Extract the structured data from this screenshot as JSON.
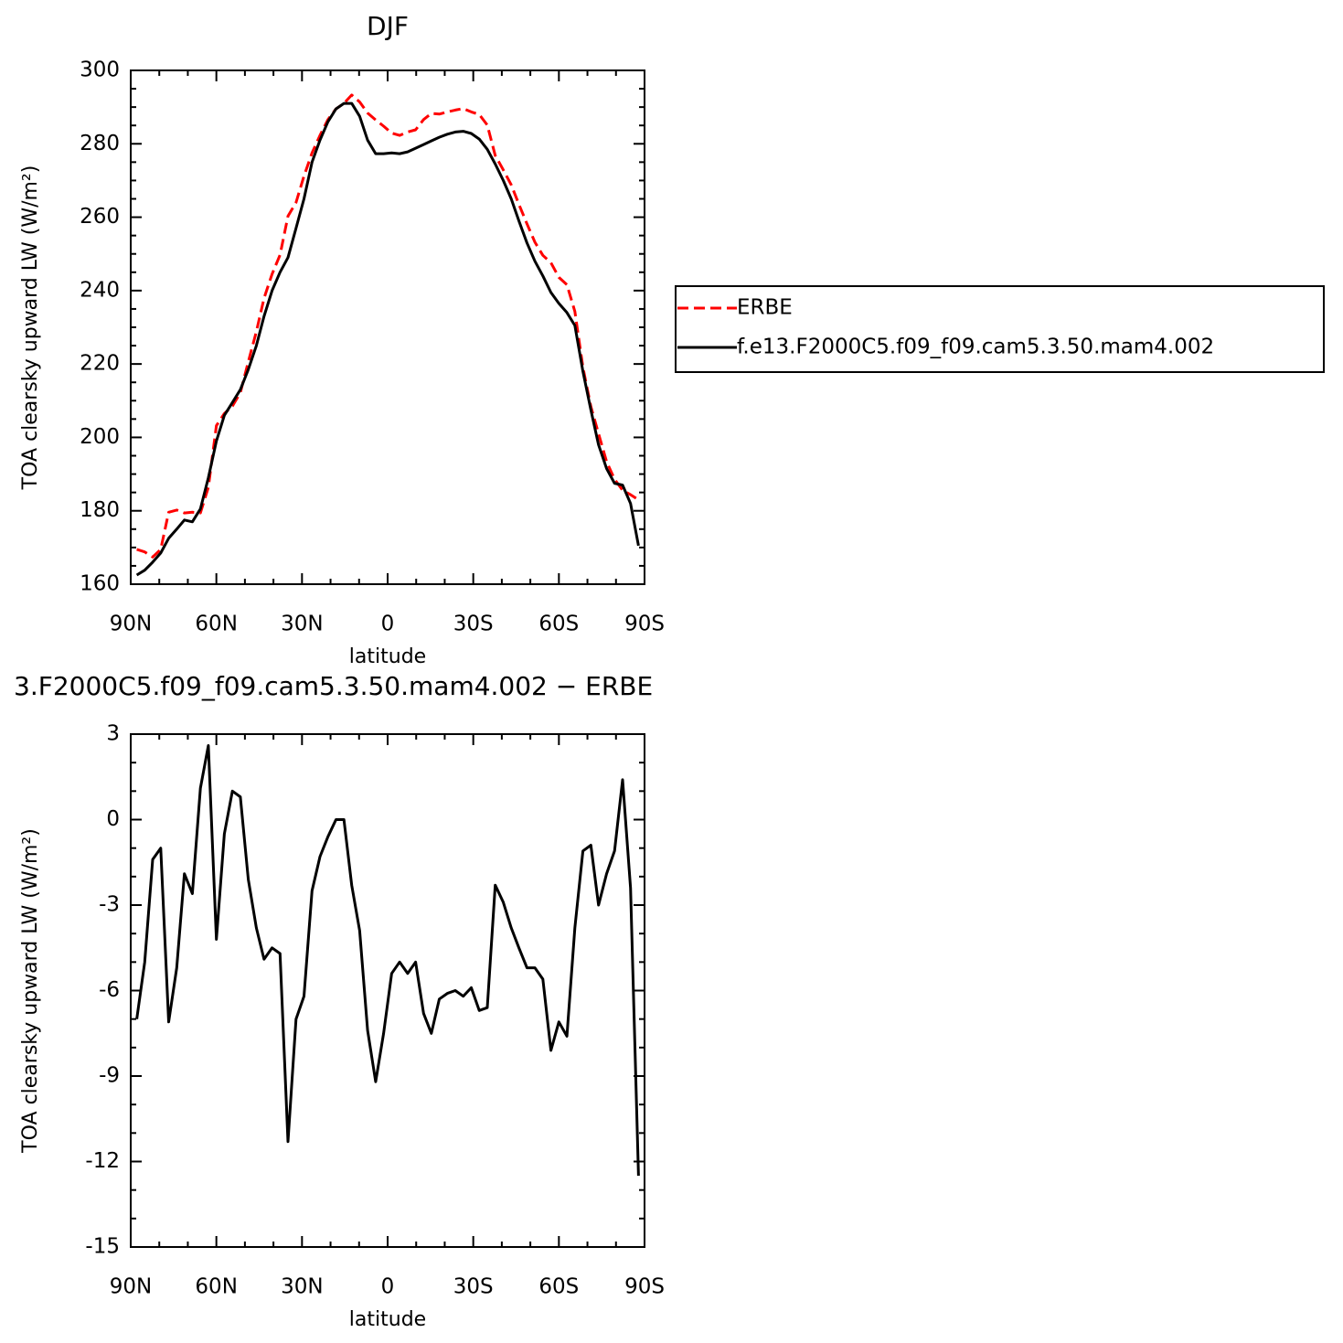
{
  "chart_data": [
    {
      "type": "line",
      "title": "DJF",
      "x_label": "latitude",
      "y_label": "TOA clearsky upward LW (W/m²)",
      "x": [
        87.9,
        85.1,
        82.3,
        79.5,
        76.7,
        73.9,
        71.2,
        68.4,
        65.6,
        62.8,
        60.0,
        57.2,
        54.4,
        51.6,
        48.8,
        46.0,
        43.3,
        40.5,
        37.7,
        34.9,
        32.1,
        29.3,
        26.5,
        23.7,
        20.9,
        18.1,
        15.3,
        12.6,
        9.8,
        7.0,
        4.2,
        1.4,
        -1.4,
        -4.2,
        -7.0,
        -9.8,
        -12.6,
        -15.3,
        -18.1,
        -20.9,
        -23.7,
        -26.5,
        -29.3,
        -32.1,
        -34.9,
        -37.7,
        -40.5,
        -43.3,
        -46.0,
        -48.8,
        -51.6,
        -54.4,
        -57.2,
        -60.0,
        -62.8,
        -65.6,
        -68.4,
        -71.2,
        -73.9,
        -76.7,
        -79.5,
        -82.3,
        -85.1,
        -87.9
      ],
      "series": [
        {
          "name": "ERBE",
          "color": "#ff0000",
          "style": "dashed",
          "values": [
            169.5,
            168.8,
            167.4,
            169.5,
            179.6,
            180.2,
            179.4,
            179.6,
            179.4,
            186.4,
            203.2,
            206.5,
            208.5,
            212.2,
            220.6,
            228.8,
            237.9,
            244.5,
            249.7,
            260.3,
            264,
            271.2,
            277.5,
            282.3,
            286.6,
            289.5,
            291,
            293.3,
            291.4,
            288.4,
            286.5,
            284.8,
            282.9,
            282.3,
            283.2,
            283.8,
            286.6,
            288.3,
            288.1,
            288.7,
            289.2,
            289.6,
            288.7,
            288,
            285.1,
            276.8,
            272.9,
            268.8,
            263.5,
            258.2,
            253.2,
            249.6,
            247.6,
            243.6,
            241.6,
            234.3,
            219.1,
            208.4,
            201,
            193.4,
            188.6,
            185.6,
            184.4,
            183
          ]
        },
        {
          "name": "f.e13.F2000C5.f09_f09.cam5.3.50.mam4.002",
          "color": "#000000",
          "style": "solid",
          "values": [
            162.5,
            163.8,
            166,
            168.5,
            172.5,
            175,
            177.5,
            177,
            180.5,
            189,
            199,
            206,
            209.5,
            213,
            218.5,
            225,
            233,
            240,
            245,
            249,
            257,
            265,
            275,
            281,
            286,
            289.5,
            291,
            291,
            287.5,
            281,
            277.3,
            277.3,
            277.5,
            277.3,
            277.8,
            278.8,
            279.8,
            280.8,
            281.8,
            282.6,
            283.2,
            283.4,
            282.8,
            281.3,
            278.5,
            274.5,
            270,
            265,
            259,
            253,
            248,
            244,
            239.5,
            236.5,
            234,
            230.5,
            218,
            207.5,
            198,
            191.5,
            187.5,
            187,
            182,
            170.5
          ]
        }
      ],
      "xlim": [
        90,
        -90
      ],
      "xticks": [
        {
          "value": 90,
          "label": "90N"
        },
        {
          "value": 60,
          "label": "60N"
        },
        {
          "value": 30,
          "label": "30N"
        },
        0,
        {
          "value": -30,
          "label": "30S"
        },
        {
          "value": -60,
          "label": "60S"
        },
        {
          "value": -90,
          "label": "90S"
        }
      ],
      "ylim": [
        160,
        300
      ],
      "yticks": [
        160,
        180,
        200,
        220,
        240,
        260,
        280,
        300
      ],
      "legend": "right"
    },
    {
      "type": "line",
      "title": "3.F2000C5.f09_f09.cam5.3.50.mam4.002 − ERBE",
      "x_label": "latitude",
      "y_label": "TOA clearsky upward LW (W/m²)",
      "x": [
        87.9,
        85.1,
        82.3,
        79.5,
        76.7,
        73.9,
        71.2,
        68.4,
        65.6,
        62.8,
        60.0,
        57.2,
        54.4,
        51.6,
        48.8,
        46.0,
        43.3,
        40.5,
        37.7,
        34.9,
        32.1,
        29.3,
        26.5,
        23.7,
        20.9,
        18.1,
        15.3,
        12.6,
        9.8,
        7.0,
        4.2,
        1.4,
        -1.4,
        -4.2,
        -7.0,
        -9.8,
        -12.6,
        -15.3,
        -18.1,
        -20.9,
        -23.7,
        -26.5,
        -29.3,
        -32.1,
        -34.9,
        -37.7,
        -40.5,
        -43.3,
        -46.0,
        -48.8,
        -51.6,
        -54.4,
        -57.2,
        -60.0,
        -62.8,
        -65.6,
        -68.4,
        -71.2,
        -73.9,
        -76.7,
        -79.5,
        -82.3,
        -85.1,
        -87.9
      ],
      "values": [
        -7.0,
        -5.0,
        -1.4,
        -1.0,
        -7.1,
        -5.2,
        -1.9,
        -2.6,
        1.1,
        2.6,
        -4.2,
        -0.5,
        1.0,
        0.8,
        -2.1,
        -3.8,
        -4.9,
        -4.5,
        -4.7,
        -11.3,
        -7.0,
        -6.2,
        -2.5,
        -1.3,
        -0.6,
        0.0,
        0.0,
        -2.3,
        -3.9,
        -7.4,
        -9.2,
        -7.5,
        -5.4,
        -5.0,
        -5.4,
        -5.0,
        -6.8,
        -7.5,
        -6.3,
        -6.1,
        -6.0,
        -6.2,
        -5.9,
        -6.7,
        -6.6,
        -2.3,
        -2.9,
        -3.8,
        -4.5,
        -5.2,
        -5.2,
        -5.6,
        -8.1,
        -7.1,
        -7.6,
        -3.8,
        -1.1,
        -0.9,
        -3.0,
        -1.9,
        -1.1,
        1.4,
        -2.4,
        -12.5
      ],
      "color": "#000000",
      "xlim": [
        90,
        -90
      ],
      "xticks": [
        {
          "value": 90,
          "label": "90N"
        },
        {
          "value": 60,
          "label": "60N"
        },
        {
          "value": 30,
          "label": "30N"
        },
        0,
        {
          "value": -30,
          "label": "30S"
        },
        {
          "value": -60,
          "label": "60S"
        },
        {
          "value": -90,
          "label": "90S"
        }
      ],
      "ylim": [
        -15,
        3
      ],
      "yticks": [
        -15,
        -12,
        -9,
        -6,
        -3,
        0,
        3
      ]
    }
  ]
}
